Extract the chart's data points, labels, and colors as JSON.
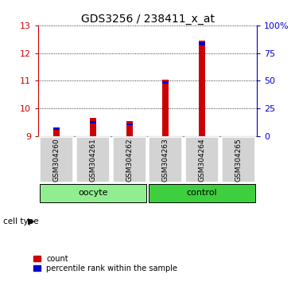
{
  "title": "GDS3256 / 238411_x_at",
  "samples": [
    "GSM304260",
    "GSM304261",
    "GSM304262",
    "GSM304263",
    "GSM304264",
    "GSM304265"
  ],
  "red_tops": [
    9.3,
    9.65,
    9.55,
    11.05,
    12.45,
    9.0
  ],
  "blue_bottoms": [
    9.22,
    9.45,
    9.38,
    10.88,
    12.28,
    9.0
  ],
  "blue_tops": [
    9.3,
    9.55,
    9.46,
    10.97,
    12.4,
    9.0
  ],
  "ylim_left": [
    9,
    13
  ],
  "ylim_right": [
    0,
    100
  ],
  "yticks_left": [
    9,
    10,
    11,
    12,
    13
  ],
  "yticks_right": [
    0,
    25,
    50,
    75,
    100
  ],
  "ytick_labels_right": [
    "0",
    "25",
    "50",
    "75",
    "100%"
  ],
  "bar_baseline": 9.0,
  "oocyte_count": 3,
  "control_count": 3,
  "oocyte_color": "#90ee90",
  "control_color": "#3ecf3e",
  "red_color": "#cc0000",
  "blue_color": "#0000cc",
  "legend_red_label": "count",
  "legend_blue_label": "percentile rank within the sample",
  "bar_width": 0.18,
  "left_axis_color": "#cc0000",
  "right_axis_color": "#0000cc",
  "title_fontsize": 10
}
